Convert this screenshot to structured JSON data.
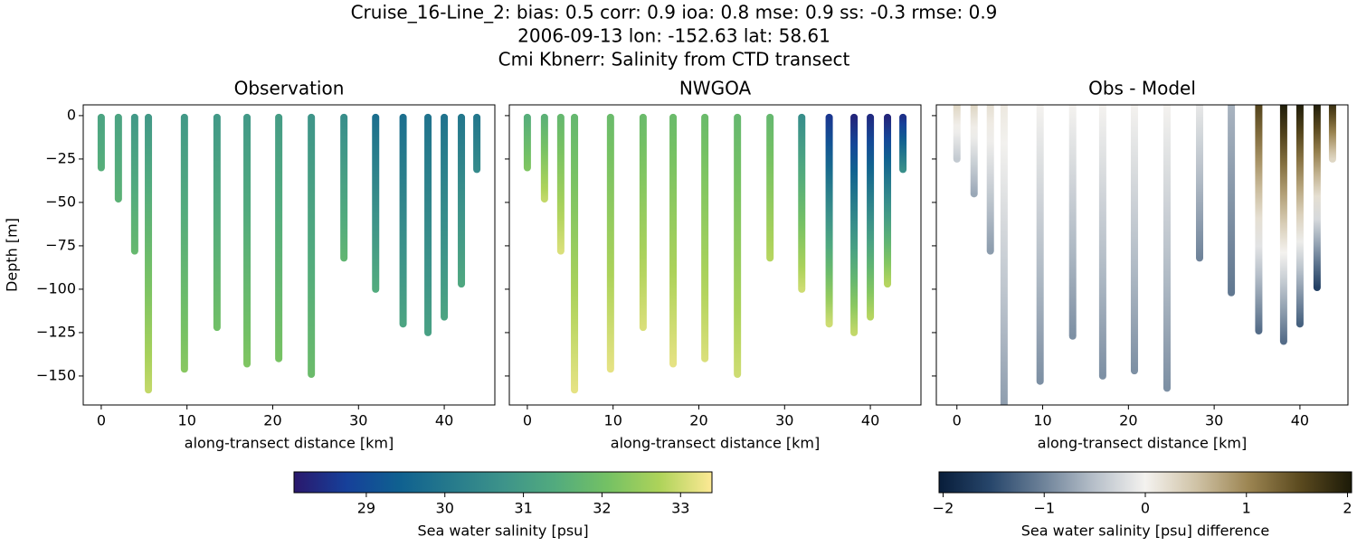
{
  "title": [
    "Cruise_16-Line_2: bias: 0.5  corr: 0.9  ioa: 0.8  mse: 0.9  ss: -0.3  rmse: 0.9",
    "2006-09-13 lon: -152.63 lat: 58.61",
    "Cmi Kbnerr: Salinity from CTD transect"
  ],
  "chart_data": [
    {
      "type": "profile",
      "title": "Observation",
      "xlabel": "along-transect distance [km]",
      "ylabel": "Depth [m]",
      "colorbar": 0,
      "xlim": [
        -2.1,
        45.9
      ],
      "xticks": [
        0,
        10,
        20,
        30,
        40
      ],
      "ylim": [
        -166.7,
        6.2
      ],
      "yticks": [
        {
          "value": -150,
          "label": "−150"
        },
        {
          "value": -125,
          "label": "−125"
        },
        {
          "value": -100,
          "label": "−100"
        },
        {
          "value": -75,
          "label": "−75"
        },
        {
          "value": -50,
          "label": "−50"
        },
        {
          "value": -25,
          "label": "−25"
        },
        0
      ],
      "x": [
        0,
        2.0,
        3.9,
        5.5,
        9.7,
        13.5,
        17.0,
        20.7,
        24.5,
        28.3,
        32.0,
        35.2,
        38.1,
        40.0,
        42.0,
        43.8
      ],
      "depth_range": [
        [
          -1,
          -30
        ],
        [
          -1,
          -48
        ],
        [
          -1,
          -78
        ],
        [
          -1,
          -158
        ],
        [
          -1,
          -146
        ],
        [
          -1,
          -122
        ],
        [
          -1,
          -143
        ],
        [
          -1,
          -140
        ],
        [
          -1,
          -149
        ],
        [
          -1,
          -82
        ],
        [
          -1,
          -100
        ],
        [
          -1,
          -120
        ],
        [
          -1,
          -125
        ],
        [
          -1,
          -116
        ],
        [
          -1,
          -97
        ],
        [
          -1,
          -31
        ]
      ],
      "values": [
        [
          31.2,
          31.5
        ],
        [
          31.2,
          31.6
        ],
        [
          30.9,
          31.8
        ],
        [
          30.9,
          32.9
        ],
        [
          30.9,
          32.3
        ],
        [
          30.9,
          32.0
        ],
        [
          30.9,
          32.2
        ],
        [
          31.0,
          32.1
        ],
        [
          30.8,
          31.9
        ],
        [
          30.6,
          31.7
        ],
        [
          29.8,
          31.4
        ],
        [
          29.8,
          31.2
        ],
        [
          29.9,
          31.1
        ],
        [
          29.9,
          31.2
        ],
        [
          30.0,
          31.3
        ],
        [
          30.0,
          30.5
        ]
      ]
    },
    {
      "type": "profile",
      "title": "NWGOA",
      "xlabel": "along-transect distance [km]",
      "colorbar": 0,
      "xlim": [
        -2.1,
        45.9
      ],
      "xticks": [
        0,
        10,
        20,
        30,
        40
      ],
      "ylim": [
        -166.7,
        6.2
      ],
      "yticks": [
        -150,
        -125,
        -100,
        -75,
        -50,
        -25,
        0
      ],
      "x": [
        0,
        2.0,
        3.9,
        5.5,
        9.7,
        13.5,
        17.0,
        20.7,
        24.5,
        28.3,
        32.0,
        35.2,
        38.1,
        40.0,
        42.0,
        43.8
      ],
      "depth_range": [
        [
          -1,
          -30
        ],
        [
          -1,
          -48
        ],
        [
          -1,
          -78
        ],
        [
          -1,
          -158
        ],
        [
          -1,
          -146
        ],
        [
          -1,
          -122
        ],
        [
          -1,
          -143
        ],
        [
          -1,
          -140
        ],
        [
          -1,
          -149
        ],
        [
          -1,
          -82
        ],
        [
          -1,
          -100
        ],
        [
          -1,
          -120
        ],
        [
          -1,
          -125
        ],
        [
          -1,
          -116
        ],
        [
          -1,
          -97
        ],
        [
          -1,
          -31
        ]
      ],
      "values": [
        [
          31.5,
          32.2
        ],
        [
          31.6,
          32.9
        ],
        [
          31.8,
          33.1
        ],
        [
          31.8,
          33.2
        ],
        [
          31.9,
          33.2
        ],
        [
          31.9,
          33.1
        ],
        [
          31.9,
          33.2
        ],
        [
          31.9,
          33.1
        ],
        [
          31.8,
          33.0
        ],
        [
          31.8,
          32.8
        ],
        [
          30.6,
          33.0
        ],
        [
          28.6,
          33.0
        ],
        [
          28.3,
          32.9
        ],
        [
          28.4,
          32.8
        ],
        [
          28.3,
          32.8
        ],
        [
          28.5,
          30.6
        ]
      ]
    },
    {
      "type": "profile",
      "title": "Obs - Model",
      "xlabel": "along-transect distance [km]",
      "colorbar": 1,
      "xlim": [
        -2.4,
        45.6
      ],
      "xticks": [
        0,
        10,
        20,
        30,
        40
      ],
      "ylim": [
        -166.7,
        6.2
      ],
      "yticks": [
        -150,
        -125,
        -100,
        -75,
        -50,
        -25,
        0
      ],
      "x": [
        0,
        2.0,
        3.9,
        5.5,
        9.7,
        13.5,
        17.0,
        20.7,
        24.5,
        28.3,
        32.0,
        35.2,
        38.1,
        40.0,
        42.0,
        43.8
      ],
      "depth_range": [
        [
          6,
          -25
        ],
        [
          6,
          -45
        ],
        [
          6,
          -78
        ],
        [
          6,
          -170
        ],
        [
          6,
          -153
        ],
        [
          6,
          -127
        ],
        [
          6,
          -150
        ],
        [
          6,
          -147
        ],
        [
          6,
          -157
        ],
        [
          6,
          -82
        ],
        [
          6,
          -102
        ],
        [
          6,
          -124
        ],
        [
          6,
          -130
        ],
        [
          6,
          -120
        ],
        [
          6,
          -99
        ],
        [
          6,
          -25
        ]
      ],
      "values": [
        [
          0.3,
          -0.4
        ],
        [
          0.3,
          -0.7
        ],
        [
          0.2,
          -0.8
        ],
        [
          0.1,
          -0.8
        ],
        [
          0,
          -0.9
        ],
        [
          0,
          -0.9
        ],
        [
          0,
          -0.9
        ],
        [
          0,
          -0.9
        ],
        [
          0,
          -0.9
        ],
        [
          -0.1,
          -1.0
        ],
        [
          -0.6,
          -1.1
        ],
        [
          1.6,
          -1.2
        ],
        [
          2.0,
          -1.2
        ],
        [
          2.0,
          -1.3
        ],
        [
          2.0,
          -1.6
        ],
        [
          1.8,
          0.3
        ]
      ]
    }
  ],
  "colorbars": [
    {
      "label": "Sea water salinity [psu]",
      "lim": [
        28.08,
        33.4
      ],
      "ticks": [
        29,
        30,
        31,
        32,
        33
      ],
      "colormap": [
        "#2a186c",
        "#16409a",
        "#0f6090",
        "#267a8c",
        "#3d938a",
        "#52ab7e",
        "#74c164",
        "#aed35a",
        "#fde995"
      ]
    },
    {
      "label": "Sea water salinity [psu] difference",
      "lim": [
        -2.04,
        2.04
      ],
      "ticks": [
        {
          "value": -2,
          "label": "−2"
        },
        {
          "value": -1,
          "label": "−1"
        },
        0,
        1,
        2
      ],
      "colormap": [
        "#081d3a",
        "#27466b",
        "#6c8198",
        "#b6bfc9",
        "#f4f2ef",
        "#cfc2a5",
        "#9c8552",
        "#5b4a1f",
        "#1c1a08"
      ]
    }
  ]
}
